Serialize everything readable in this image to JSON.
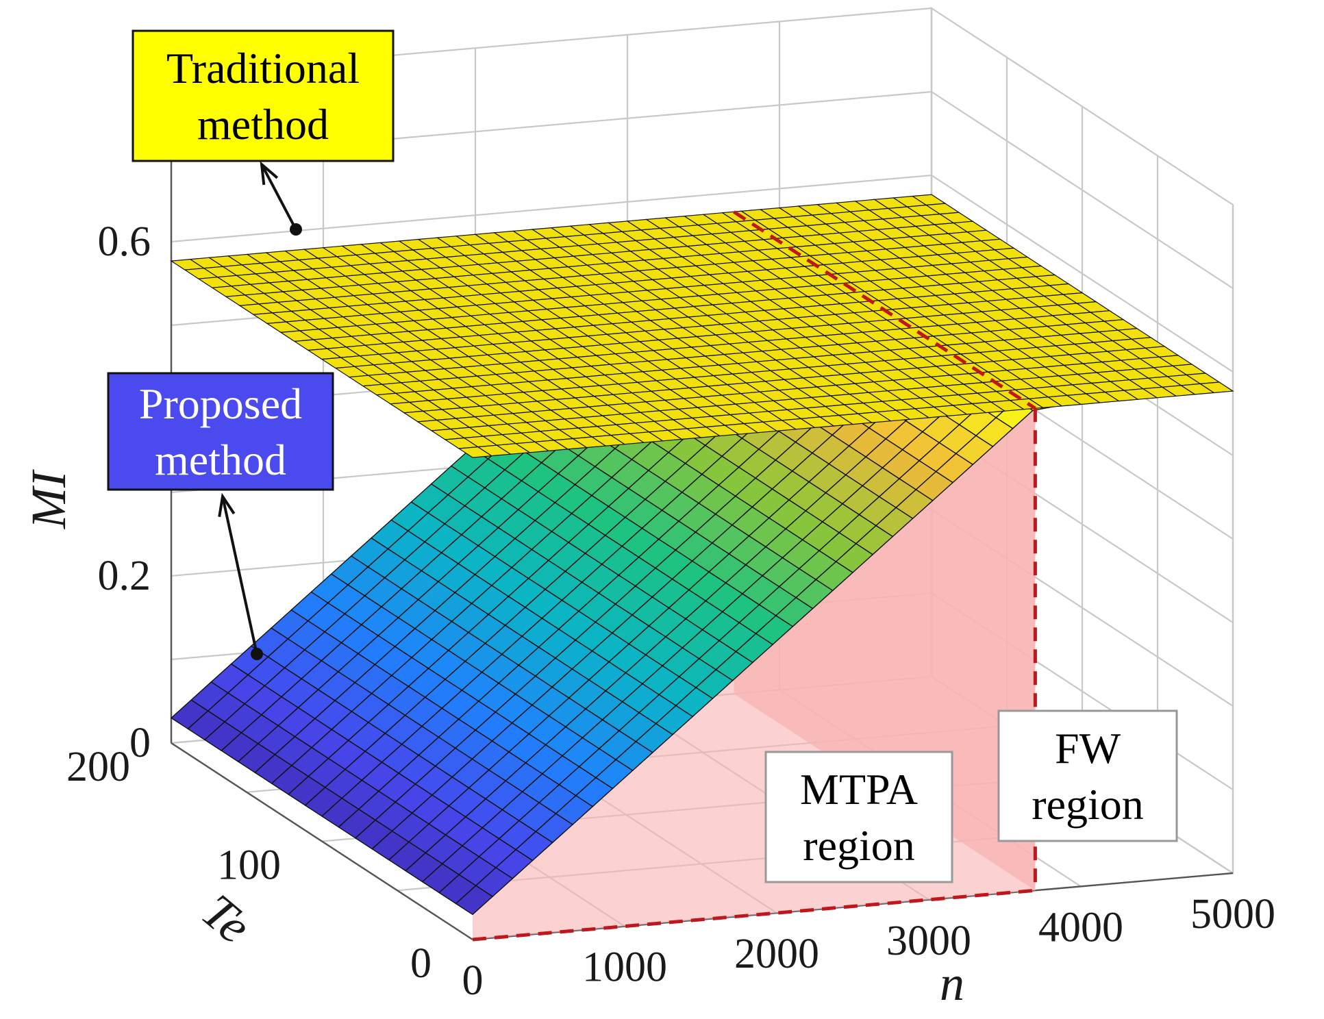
{
  "chart_data": {
    "type": "surface3d",
    "title": "",
    "xlabel": "n",
    "ylabel": "Te",
    "zlabel": "MI",
    "x_ticks": [
      "0",
      "1000",
      "2000",
      "3000",
      "4000",
      "5000"
    ],
    "y_ticks": [
      "0",
      "100",
      "200"
    ],
    "z_ticks": [
      "0",
      "0.2",
      "0.6"
    ],
    "xlim": [
      0,
      5000
    ],
    "ylim": [
      0,
      200
    ],
    "zlim": [
      0,
      0.8
    ],
    "grid": true,
    "boundary_n": 3700,
    "series": [
      {
        "name": "Traditional method",
        "description_value": 0.577,
        "z_at_corners": {
          "n0_T0": 0.577,
          "n5000_T0": 0.577,
          "n0_T200": 0.577,
          "n5000_T200": 0.577
        },
        "color": "#f2e10c"
      },
      {
        "name": "Proposed method",
        "mtpa_region": {
          "n_range": [
            0,
            3700
          ],
          "z_at_n0": 0.03,
          "z_at_n3700": 0.577
        },
        "fw_region": {
          "n_range": [
            3700,
            5000
          ],
          "z": 0.577
        },
        "colormap": [
          "#3e26a8",
          "#4746eb",
          "#1f82fd",
          "#0bb4c8",
          "#1cc283",
          "#8bc63a",
          "#f0ba3a",
          "#f9fb15"
        ]
      }
    ],
    "annotations": {
      "traditional": "Traditional\nmethod",
      "proposed": "Proposed\nmethod",
      "mtpa": "MTPA\nregion",
      "fw": "FW\nregion"
    },
    "colors": {
      "traditional_box": "#ffff00",
      "proposed_box": "#4a4aef",
      "region_fill": "#f8b3b3",
      "boundary_line": "#c0161c"
    }
  }
}
